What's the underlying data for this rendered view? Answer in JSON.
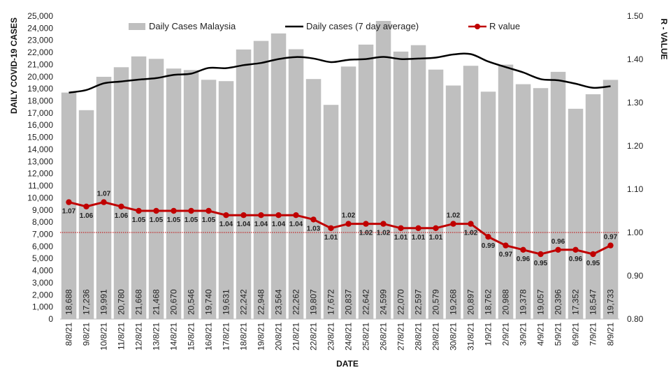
{
  "chart_data": {
    "type": "bar",
    "title": "",
    "xlabel": "DATE",
    "ylabel": "DAILY COVID-19 CASES",
    "y2label": "R - VALUE",
    "ylim": [
      0,
      25000
    ],
    "y2lim": [
      0.8,
      1.5
    ],
    "yticks": [
      "0",
      "1,000",
      "2,000",
      "3,000",
      "4,000",
      "5,000",
      "6,000",
      "7,000",
      "8,000",
      "9,000",
      "10,000",
      "11,000",
      "12,000",
      "13,000",
      "14,000",
      "15,000",
      "16,000",
      "17,000",
      "18,000",
      "19,000",
      "20,000",
      "21,000",
      "22,000",
      "23,000",
      "24,000",
      "25,000"
    ],
    "y2ticks": [
      "0.80",
      "0.90",
      "1.00",
      "1.10",
      "1.20",
      "1.30",
      "1.40",
      "1.50"
    ],
    "categories": [
      "8/8/21",
      "9/8/21",
      "10/8/21",
      "11/8/21",
      "12/8/21",
      "13/8/21",
      "14/8/21",
      "15/8/21",
      "16/8/21",
      "17/8/21",
      "18/8/21",
      "19/8/21",
      "20/8/21",
      "21/8/21",
      "22/8/21",
      "23/8/21",
      "24/8/21",
      "25/8/21",
      "26/8/21",
      "27/8/21",
      "28/8/21",
      "29/8/21",
      "30/8/21",
      "31/8/21",
      "1/9/21",
      "2/9/21",
      "3/9/21",
      "4/9/21",
      "5/9/21",
      "6/9/21",
      "7/9/21",
      "8/9/21"
    ],
    "series": [
      {
        "name": "Daily Cases Malaysia",
        "kind": "bar",
        "axis": "left",
        "color": "#bfbfbf",
        "values": [
          18688,
          17236,
          19991,
          20780,
          21668,
          21468,
          20670,
          20546,
          19740,
          19631,
          22242,
          22948,
          23564,
          22262,
          19807,
          17672,
          20837,
          22642,
          24599,
          22070,
          22597,
          20579,
          19268,
          20897,
          18762,
          20988,
          19378,
          19057,
          20396,
          17352,
          18547,
          19733
        ],
        "labels": [
          "18,688",
          "17,236",
          "19,991",
          "20,780",
          "21,668",
          "21,468",
          "20,670",
          "20,546",
          "19,740",
          "19,631",
          "22,242",
          "22,948",
          "23,564",
          "22,262",
          "19,807",
          "17,672",
          "20,837",
          "22,642",
          "24,599",
          "22,070",
          "22,597",
          "20,579",
          "19,268",
          "20,897",
          "18,762",
          "20,988",
          "19,378",
          "19,057",
          "20,396",
          "17,352",
          "18,547",
          "19,733"
        ]
      },
      {
        "name": "Daily cases (7 day average)",
        "kind": "line",
        "axis": "left",
        "color": "#000000",
        "values": [
          18688,
          18900,
          19450,
          19600,
          19760,
          19880,
          20150,
          20250,
          20720,
          20700,
          20950,
          21130,
          21450,
          21620,
          21500,
          21200,
          21390,
          21450,
          21630,
          21450,
          21490,
          21570,
          21830,
          21860,
          21250,
          20790,
          20350,
          19800,
          19700,
          19420,
          19080,
          19210
        ]
      },
      {
        "name": "R value",
        "kind": "line",
        "axis": "right",
        "color": "#c00000",
        "values": [
          1.07,
          1.06,
          1.07,
          1.06,
          1.05,
          1.05,
          1.05,
          1.05,
          1.05,
          1.04,
          1.04,
          1.04,
          1.04,
          1.04,
          1.03,
          1.01,
          1.02,
          1.02,
          1.02,
          1.01,
          1.01,
          1.01,
          1.02,
          1.02,
          0.99,
          0.97,
          0.96,
          0.95,
          0.96,
          0.96,
          0.95,
          0.97
        ],
        "labels": [
          "1.07",
          "1.06",
          "1.07",
          "1.06",
          "1.05",
          "1.05",
          "1.05",
          "1.05",
          "1.05",
          "1.04",
          "1.04",
          "1.04",
          "1.04",
          "1.04",
          "1.03",
          "1.01",
          "1.02",
          "1.02",
          "1.02",
          "1.01",
          "1.01",
          "1.01",
          "1.02",
          "1.02",
          "0.99",
          "0.97",
          "0.96",
          "0.95",
          "0.96",
          "0.96",
          "0.95",
          "0.97"
        ]
      }
    ],
    "reference_line": {
      "axis": "right",
      "value": 1.0,
      "style": "dotted",
      "color": "#c00000"
    },
    "legend": {
      "position": "top",
      "entries": [
        "Daily Cases Malaysia",
        "Daily cases (7 day average)",
        "R value"
      ]
    },
    "grid": false
  }
}
